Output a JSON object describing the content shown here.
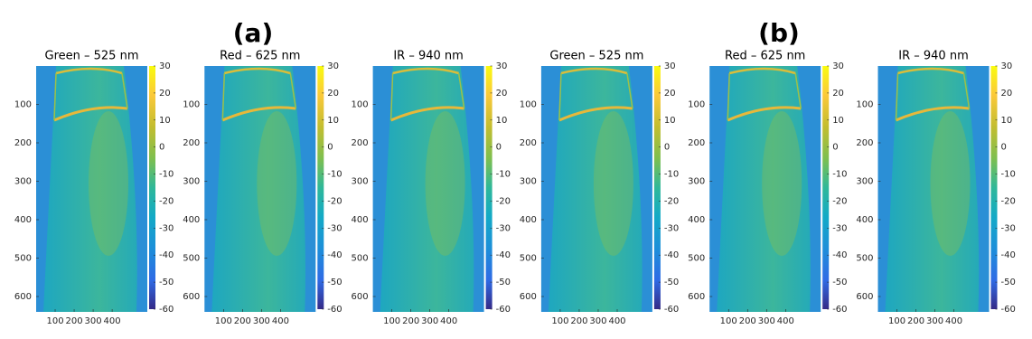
{
  "group_labels": [
    "(a)",
    "(b)"
  ],
  "chart_data": [
    {
      "type": "image",
      "title": "Green – 525 nm",
      "xlim": [
        0,
        585
      ],
      "ylim": [
        0,
        640
      ],
      "xticks": [
        100,
        200,
        300,
        400
      ],
      "yticks": [
        100,
        200,
        300,
        400,
        500,
        600
      ],
      "clim": [
        -60,
        30
      ],
      "cticks": [
        -60,
        -50,
        -40,
        -30,
        -20,
        -10,
        0,
        10,
        20,
        30
      ]
    },
    {
      "type": "image",
      "title": "Red – 625 nm",
      "xlim": [
        0,
        585
      ],
      "ylim": [
        0,
        640
      ],
      "xticks": [
        100,
        200,
        300,
        400
      ],
      "yticks": [
        100,
        200,
        300,
        400,
        500,
        600
      ],
      "clim": [
        -60,
        30
      ],
      "cticks": [
        -60,
        -50,
        -40,
        -30,
        -20,
        -10,
        0,
        10,
        20,
        30
      ]
    },
    {
      "type": "image",
      "title": "IR – 940 nm",
      "xlim": [
        0,
        585
      ],
      "ylim": [
        0,
        640
      ],
      "xticks": [
        100,
        200,
        300,
        400
      ],
      "yticks": [
        100,
        200,
        300,
        400,
        500,
        600
      ],
      "clim": [
        -60,
        30
      ],
      "cticks": [
        -60,
        -50,
        -40,
        -30,
        -20,
        -10,
        0,
        10,
        20,
        30
      ]
    },
    {
      "type": "image",
      "title": "Green – 525 nm",
      "xlim": [
        0,
        585
      ],
      "ylim": [
        0,
        640
      ],
      "xticks": [
        100,
        200,
        300,
        400
      ],
      "yticks": [
        100,
        200,
        300,
        400,
        500,
        600
      ],
      "clim": [
        -60,
        30
      ],
      "cticks": [
        -60,
        -50,
        -40,
        -30,
        -20,
        -10,
        0,
        10,
        20,
        30
      ]
    },
    {
      "type": "image",
      "title": "Red – 625 nm",
      "xlim": [
        0,
        585
      ],
      "ylim": [
        0,
        640
      ],
      "xticks": [
        100,
        200,
        300,
        400
      ],
      "yticks": [
        100,
        200,
        300,
        400,
        500,
        600
      ],
      "clim": [
        -60,
        30
      ],
      "cticks": [
        -60,
        -50,
        -40,
        -30,
        -20,
        -10,
        0,
        10,
        20,
        30
      ]
    },
    {
      "type": "image",
      "title": "IR – 940 nm",
      "xlim": [
        0,
        585
      ],
      "ylim": [
        0,
        640
      ],
      "xticks": [
        100,
        200,
        300,
        400
      ],
      "yticks": [
        100,
        200,
        300,
        400,
        500,
        600
      ],
      "clim": [
        -60,
        30
      ],
      "cticks": [
        -60,
        -50,
        -40,
        -30,
        -20,
        -10,
        0,
        10,
        20,
        30
      ]
    }
  ]
}
